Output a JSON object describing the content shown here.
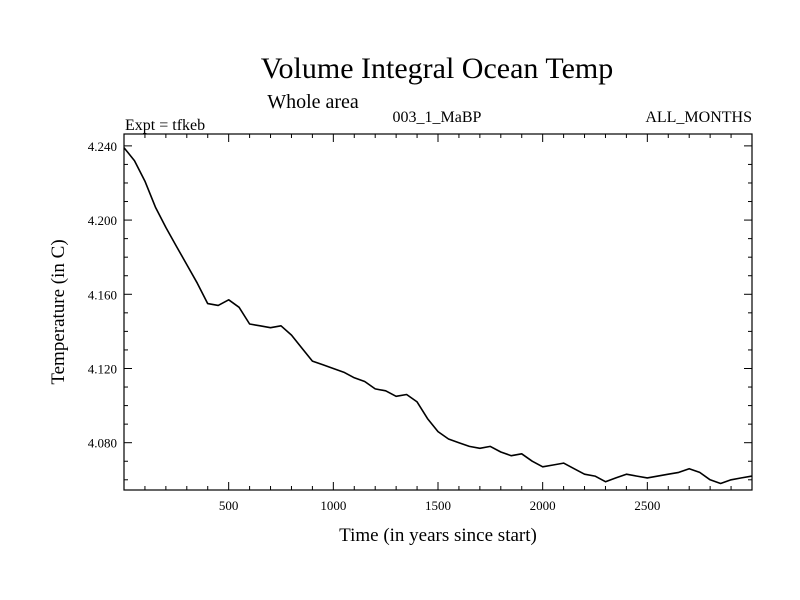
{
  "chart_data": {
    "type": "line",
    "title": "Volume Integral Ocean Temp",
    "subtitle": "Whole area",
    "experiment_label": "Expt = tfkeb",
    "center_label": "003_1_MaBP",
    "right_label": "ALL_MONTHS",
    "xlabel": "Time (in years since start)",
    "ylabel": "Temperature (in C)",
    "xlim": [
      0,
      3000
    ],
    "ylim": [
      4.0545,
      4.2464
    ],
    "x_ticks": [
      500,
      1000,
      1500,
      2000,
      2500
    ],
    "x_tick_labels": [
      "500",
      "1000",
      "1500",
      "2000",
      "2500"
    ],
    "y_ticks": [
      4.08,
      4.12,
      4.16,
      4.2,
      4.24
    ],
    "y_tick_labels": [
      "4.080",
      "4.120",
      "4.160",
      "4.200",
      "4.240"
    ],
    "grid": false,
    "legend": "none",
    "series": [
      {
        "color": "#000000",
        "x": [
          0,
          50,
          100,
          150,
          200,
          250,
          300,
          350,
          400,
          450,
          500,
          550,
          600,
          650,
          700,
          750,
          800,
          850,
          900,
          950,
          1000,
          1050,
          1100,
          1150,
          1200,
          1250,
          1300,
          1350,
          1400,
          1450,
          1500,
          1550,
          1600,
          1650,
          1700,
          1750,
          1800,
          1850,
          1900,
          1950,
          2000,
          2050,
          2100,
          2150,
          2200,
          2250,
          2300,
          2350,
          2400,
          2450,
          2500,
          2550,
          2600,
          2650,
          2700,
          2750,
          2800,
          2850,
          2900,
          2950,
          3000
        ],
        "y": [
          4.239,
          4.232,
          4.221,
          4.207,
          4.196,
          4.186,
          4.176,
          4.166,
          4.155,
          4.154,
          4.157,
          4.153,
          4.144,
          4.143,
          4.142,
          4.143,
          4.138,
          4.131,
          4.124,
          4.122,
          4.12,
          4.118,
          4.115,
          4.113,
          4.109,
          4.108,
          4.105,
          4.106,
          4.102,
          4.093,
          4.086,
          4.082,
          4.08,
          4.078,
          4.077,
          4.078,
          4.075,
          4.073,
          4.074,
          4.07,
          4.067,
          4.068,
          4.069,
          4.066,
          4.063,
          4.062,
          4.059,
          4.061,
          4.063,
          4.062,
          4.061,
          4.062,
          4.063,
          4.064,
          4.066,
          4.064,
          4.06,
          4.058,
          4.06,
          4.061,
          4.062
        ]
      }
    ]
  }
}
